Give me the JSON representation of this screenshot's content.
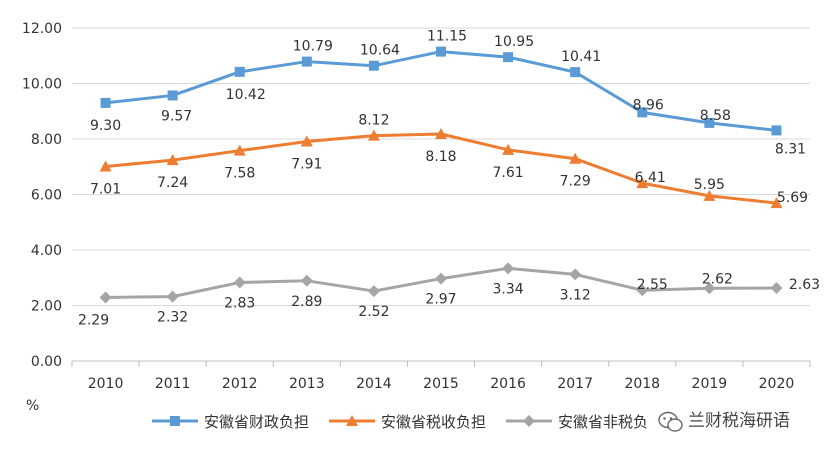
{
  "chart_data": {
    "type": "line",
    "title": "",
    "xlabel": "",
    "ylabel": "%",
    "ylim": [
      0,
      12
    ],
    "yticks": [
      "0.00",
      "2.00",
      "4.00",
      "6.00",
      "8.00",
      "10.00",
      "12.00"
    ],
    "categories": [
      "2010",
      "2011",
      "2012",
      "2013",
      "2014",
      "2015",
      "2016",
      "2017",
      "2018",
      "2019",
      "2020"
    ],
    "grid": "horizontal",
    "legend_position": "bottom",
    "series": [
      {
        "name": "安徽省财政负担",
        "color": "#5B9BD5",
        "marker": "square",
        "values": [
          9.3,
          9.57,
          10.42,
          10.79,
          10.64,
          11.15,
          10.95,
          10.41,
          8.96,
          8.58,
          8.31
        ],
        "labels": [
          "9.30",
          "9.57",
          "10.42",
          "10.79",
          "10.64",
          "11.15",
          "10.95",
          "10.41",
          "8.96",
          "8.58",
          "8.31"
        ]
      },
      {
        "name": "安徽省税收负担",
        "color": "#ED7D31",
        "marker": "triangle",
        "values": [
          7.01,
          7.24,
          7.58,
          7.91,
          8.12,
          8.18,
          7.61,
          7.29,
          6.41,
          5.95,
          5.69
        ],
        "labels": [
          "7.01",
          "7.24",
          "7.58",
          "7.91",
          "8.12",
          "8.18",
          "7.61",
          "7.29",
          "6.41",
          "5.95",
          "5.69"
        ]
      },
      {
        "name": "安徽省非税负",
        "color": "#A5A5A5",
        "marker": "diamond",
        "values": [
          2.29,
          2.32,
          2.83,
          2.89,
          2.52,
          2.97,
          3.34,
          3.12,
          2.55,
          2.62,
          2.63
        ],
        "labels": [
          "2.29",
          "2.32",
          "2.83",
          "2.89",
          "2.52",
          "2.97",
          "3.34",
          "3.12",
          "2.55",
          "2.62",
          "2.63"
        ]
      }
    ]
  },
  "watermark": {
    "text": "兰财税海研语",
    "icon": "wechat-icon"
  }
}
